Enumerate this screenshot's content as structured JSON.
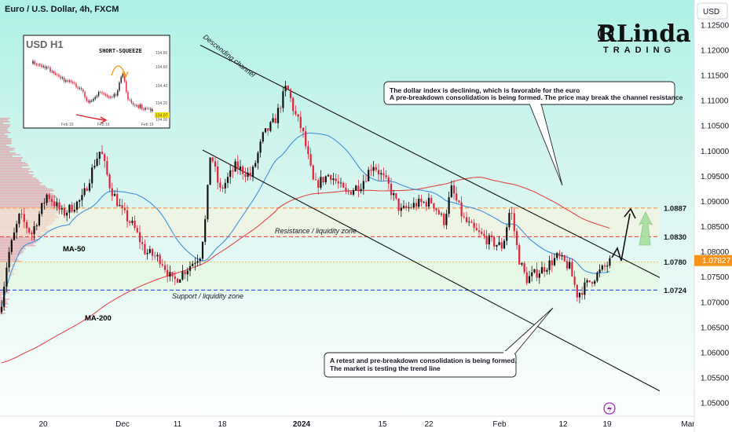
{
  "header": {
    "title": "Euro / U.S. Dollar, 4h, FXCM",
    "currency_button": "USD"
  },
  "logo": {
    "main": "RLinda",
    "sub": "TRADING"
  },
  "chart_data": {
    "type": "candlestick",
    "ylim": [
      1.0455,
      1.1295
    ],
    "y_ticks": [
      "1.12500",
      "1.12000",
      "1.11500",
      "1.11000",
      "1.10500",
      "1.10000",
      "1.09500",
      "1.09000",
      "1.08500",
      "1.08000",
      "1.07500",
      "1.07000",
      "1.06500",
      "1.06000",
      "1.05500",
      "1.05000"
    ],
    "x_ticks": [
      {
        "label": "20",
        "bold": false
      },
      {
        "label": "Dec",
        "bold": false
      },
      {
        "label": "11",
        "bold": false
      },
      {
        "label": "18",
        "bold": false
      },
      {
        "label": "2024",
        "bold": true
      },
      {
        "label": "15",
        "bold": false
      },
      {
        "label": "22",
        "bold": false
      },
      {
        "label": "Feb",
        "bold": false
      },
      {
        "label": "12",
        "bold": false
      },
      {
        "label": "19",
        "bold": false
      },
      {
        "label": "Mar",
        "bold": false
      }
    ],
    "price_anchors": [
      [
        0,
        1.068
      ],
      [
        10,
        1.079
      ],
      [
        25,
        1.0872
      ],
      [
        40,
        1.0835
      ],
      [
        60,
        1.0915
      ],
      [
        80,
        1.0875
      ],
      [
        105,
        1.0905
      ],
      [
        120,
        1.0975
      ],
      [
        128,
        1.1003
      ],
      [
        140,
        1.093
      ],
      [
        155,
        1.088
      ],
      [
        170,
        1.085
      ],
      [
        185,
        1.08
      ],
      [
        205,
        1.0785
      ],
      [
        220,
        1.074
      ],
      [
        240,
        1.077
      ],
      [
        255,
        1.0795
      ],
      [
        262,
        1.087
      ],
      [
        268,
        1.1
      ],
      [
        280,
        1.092
      ],
      [
        300,
        1.097
      ],
      [
        320,
        1.095
      ],
      [
        335,
        1.103
      ],
      [
        350,
        1.106
      ],
      [
        365,
        1.113
      ],
      [
        375,
        1.1075
      ],
      [
        385,
        1.104
      ],
      [
        400,
        1.093
      ],
      [
        420,
        1.0955
      ],
      [
        440,
        1.0915
      ],
      [
        460,
        1.0935
      ],
      [
        475,
        1.0975
      ],
      [
        495,
        1.093
      ],
      [
        510,
        1.088
      ],
      [
        530,
        1.0895
      ],
      [
        550,
        1.09
      ],
      [
        565,
        1.086
      ],
      [
        575,
        1.0925
      ],
      [
        590,
        1.0865
      ],
      [
        605,
        1.084
      ],
      [
        625,
        1.082
      ],
      [
        640,
        1.081
      ],
      [
        650,
        1.089
      ],
      [
        660,
        1.079
      ],
      [
        670,
        1.0745
      ],
      [
        690,
        1.0765
      ],
      [
        710,
        1.079
      ],
      [
        725,
        1.077
      ],
      [
        735,
        1.0715
      ],
      [
        750,
        1.074
      ],
      [
        765,
        1.0762
      ],
      [
        778,
        1.0782
      ]
    ],
    "levels": [
      {
        "value": 1.0887,
        "label": "1.0887",
        "color": "#f2994a",
        "style": "dashed"
      },
      {
        "value": 1.083,
        "label": "1.0830",
        "color": "#e05a5a",
        "style": "dashed"
      },
      {
        "value": 1.078,
        "label": "1.0780",
        "color": "#f2c94c",
        "style": "dotted"
      },
      {
        "value": 1.0724,
        "label": "1.0724",
        "color": "#3a5bd9",
        "style": "dashed"
      }
    ],
    "current_price": {
      "value": 1.07827,
      "label": "1.07827",
      "color": "#f7931a"
    },
    "channel": {
      "upper": [
        [
          255,
          1.121
        ],
        [
          840,
          1.0749
        ]
      ],
      "lower": [
        [
          258,
          1.1002
        ],
        [
          840,
          1.0524
        ]
      ],
      "label": "Descending channel"
    },
    "ma50": {
      "label": "MA-50",
      "color": "#3f8fd9"
    },
    "ma200": {
      "label": "MA-200",
      "color": "#e04848"
    },
    "zones": {
      "resistance_label": "Resistance / liquidity zone",
      "support_label": "Support / liquidity zone"
    },
    "notes": [
      {
        "lines": [
          "The dollar index is declining, which is favorable for the euro",
          "A pre-breakdown consolidation is being formed. The price may break the channel resistance"
        ]
      },
      {
        "lines": [
          "A retest and pre-breakdown consolidation is being formed.",
          "The market is testing the trend line"
        ]
      }
    ]
  },
  "inset": {
    "symbol": "USD",
    "interval": "H1",
    "title": "SHORT-SQUEEZE",
    "x_labels": [
      "Feb 15",
      "Feb 16",
      "Feb 19"
    ],
    "y_labels": [
      "104.80",
      "104.60",
      "104.40",
      "104.20",
      "104.07",
      "104.00"
    ],
    "price_tag": "104.07"
  }
}
